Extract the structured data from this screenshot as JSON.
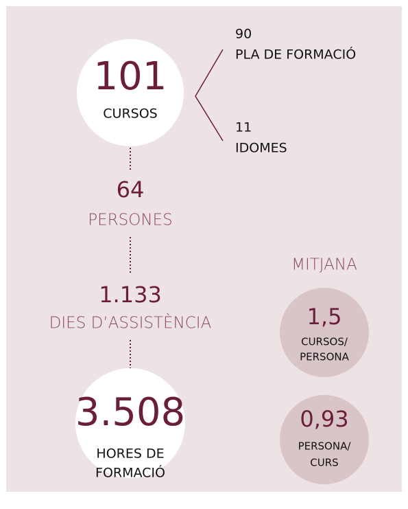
{
  "courses": {
    "value": "101",
    "label": "CURSOS",
    "breakdown": [
      {
        "value": "90",
        "label": "PLA DE FORMACIÓ"
      },
      {
        "value": "11",
        "label": "IDOMES"
      }
    ]
  },
  "people": {
    "value": "64",
    "label": "PERSONES"
  },
  "days": {
    "value": "1.133",
    "label": "DIES D’ASSISTÈNCIA"
  },
  "hours": {
    "value": "3.508",
    "label_lines": [
      "HORES DE",
      "FORMACIÓ"
    ]
  },
  "average": {
    "title": "MITJANA",
    "items": [
      {
        "value": "1,5",
        "label_lines": [
          "CURSOS/",
          "PERSONA"
        ]
      },
      {
        "value": "0,93",
        "label_lines": [
          "PERSONA/",
          "CURS"
        ]
      }
    ]
  }
}
